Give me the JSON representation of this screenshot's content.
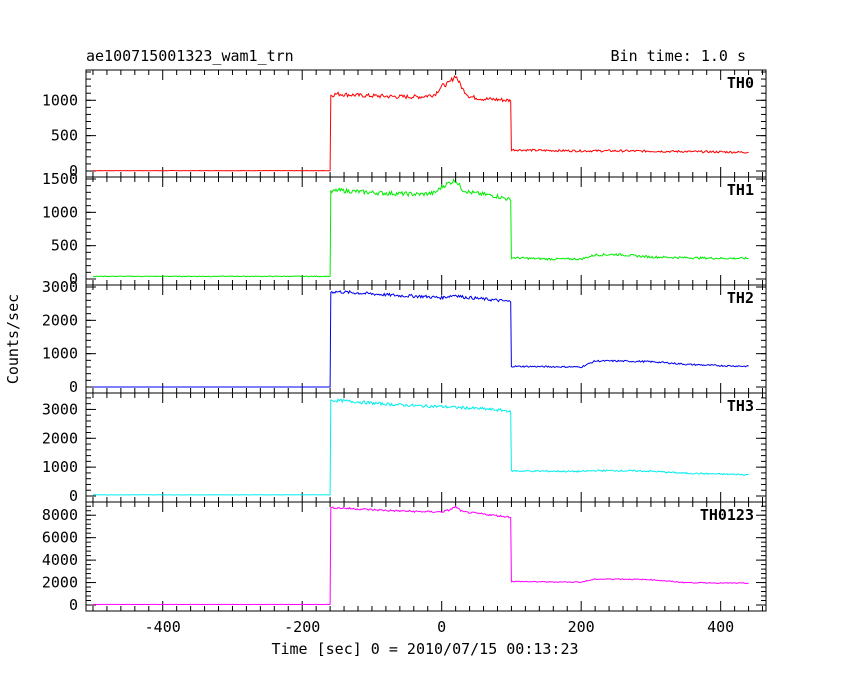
{
  "chart_data": {
    "type": "line",
    "title": "ae100715001323_wam1_trn",
    "subtitle": "Bin time: 1.0 s",
    "xlabel": "Time [sec] 0 = 2010/07/15 00:13:23",
    "ylabel": "Counts/sec",
    "xlim": [
      -510,
      465
    ],
    "xticks": [
      -400,
      -200,
      0,
      200,
      400
    ],
    "grid": false,
    "series": [
      {
        "name": "TH0",
        "color": "#ff0000",
        "ylim": [
          0,
          1400
        ],
        "yticks": [
          0,
          500,
          1000
        ],
        "x": [
          -500,
          -160,
          -159,
          -150,
          -120,
          -90,
          -60,
          -30,
          -10,
          0,
          10,
          20,
          30,
          40,
          60,
          80,
          95,
          99,
          100,
          150,
          200,
          250,
          300,
          350,
          400,
          440
        ],
        "y": [
          5,
          5,
          1070,
          1090,
          1070,
          1060,
          1050,
          1050,
          1080,
          1200,
          1240,
          1350,
          1160,
          1050,
          1020,
          1010,
          1000,
          990,
          300,
          290,
          285,
          285,
          280,
          275,
          270,
          265
        ]
      },
      {
        "name": "TH1",
        "color": "#00ee00",
        "ylim": [
          0,
          1500
        ],
        "yticks": [
          0,
          500,
          1000,
          1500
        ],
        "x": [
          -500,
          -160,
          -159,
          -150,
          -120,
          -90,
          -60,
          -30,
          -10,
          0,
          10,
          20,
          30,
          40,
          60,
          80,
          95,
          99,
          100,
          150,
          200,
          220,
          250,
          300,
          350,
          400,
          440
        ],
        "y": [
          40,
          40,
          1300,
          1330,
          1310,
          1290,
          1280,
          1270,
          1290,
          1380,
          1440,
          1480,
          1340,
          1300,
          1270,
          1240,
          1200,
          1180,
          320,
          300,
          300,
          360,
          370,
          330,
          320,
          310,
          310
        ]
      },
      {
        "name": "TH2",
        "color": "#0000ee",
        "ylim": [
          0,
          3000
        ],
        "yticks": [
          0,
          1000,
          2000,
          3000
        ],
        "x": [
          -500,
          -160,
          -159,
          -150,
          -120,
          -90,
          -60,
          -30,
          0,
          20,
          30,
          60,
          80,
          95,
          99,
          100,
          150,
          200,
          220,
          250,
          300,
          340,
          350,
          400,
          440
        ],
        "y": [
          0,
          0,
          2850,
          2860,
          2820,
          2780,
          2740,
          2720,
          2680,
          2760,
          2700,
          2640,
          2600,
          2570,
          2550,
          620,
          610,
          600,
          780,
          780,
          760,
          700,
          680,
          640,
          620
        ]
      },
      {
        "name": "TH3",
        "color": "#00eeee",
        "ylim": [
          0,
          3500
        ],
        "yticks": [
          0,
          1000,
          2000,
          3000
        ],
        "x": [
          -500,
          -160,
          -159,
          -150,
          -120,
          -90,
          -60,
          -30,
          0,
          30,
          60,
          80,
          95,
          99,
          100,
          150,
          200,
          220,
          250,
          300,
          340,
          350,
          400,
          440
        ],
        "y": [
          40,
          40,
          3300,
          3310,
          3260,
          3200,
          3160,
          3120,
          3100,
          3060,
          3020,
          2980,
          2950,
          2900,
          870,
          860,
          850,
          880,
          880,
          860,
          800,
          790,
          760,
          740
        ]
      },
      {
        "name": "TH0123",
        "color": "#ff00ff",
        "ylim": [
          0,
          9000
        ],
        "yticks": [
          0,
          2000,
          4000,
          6000,
          8000
        ],
        "x": [
          -500,
          -160,
          -159,
          -150,
          -120,
          -90,
          -60,
          -30,
          0,
          10,
          20,
          30,
          60,
          80,
          95,
          99,
          100,
          150,
          200,
          220,
          250,
          300,
          340,
          350,
          400,
          440
        ],
        "y": [
          50,
          50,
          8650,
          8660,
          8560,
          8460,
          8380,
          8320,
          8300,
          8440,
          8750,
          8300,
          8100,
          7960,
          7860,
          7800,
          2100,
          2060,
          2040,
          2300,
          2320,
          2260,
          2040,
          2000,
          1960,
          1940
        ]
      }
    ]
  }
}
